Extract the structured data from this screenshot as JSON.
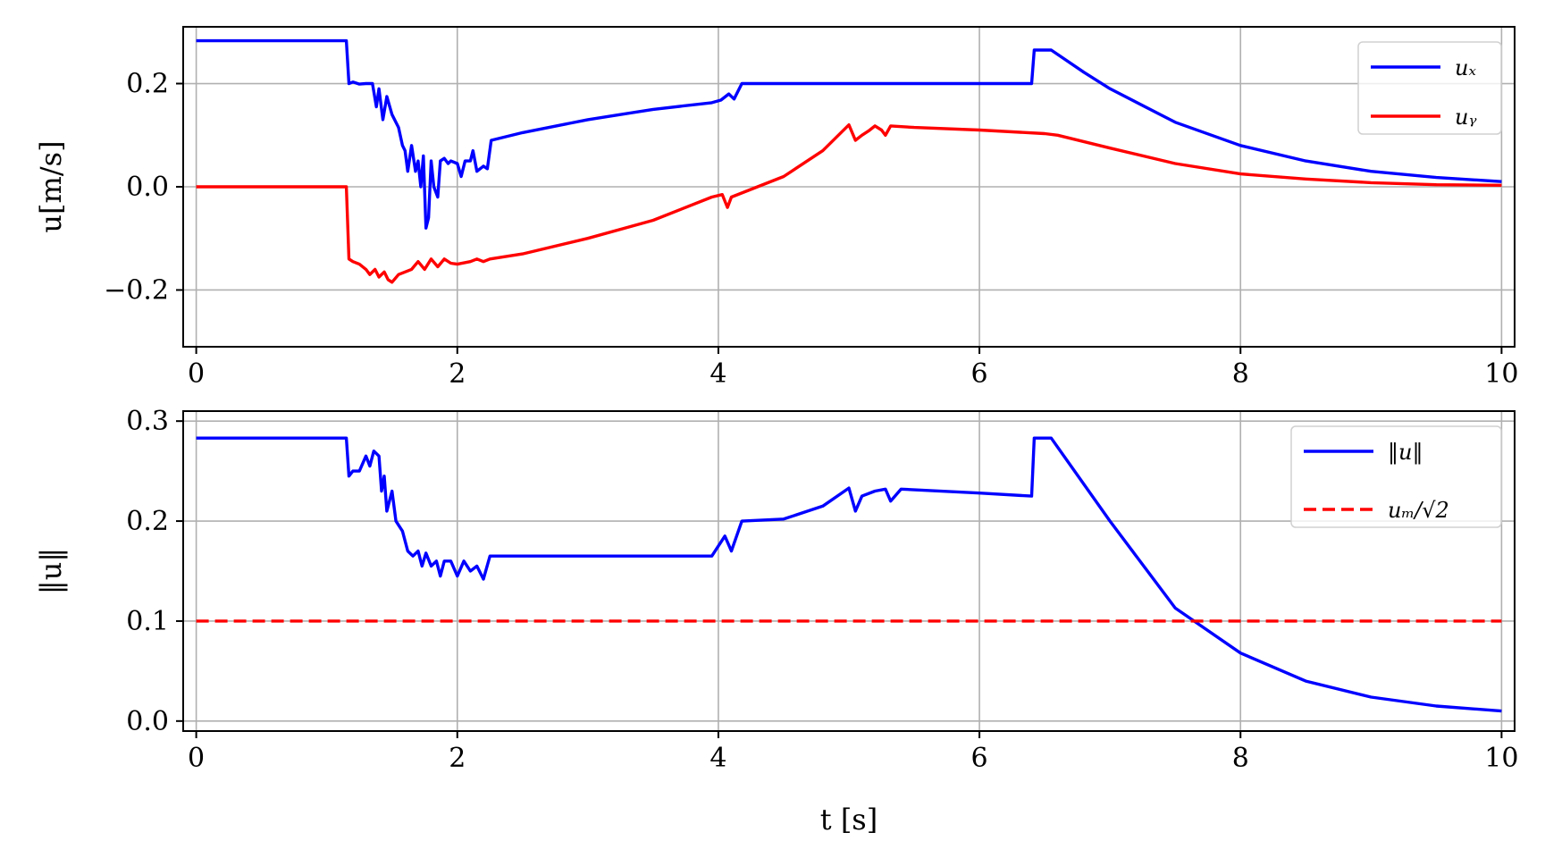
{
  "chart_data": [
    {
      "type": "line",
      "ylabel": "u[m/s]",
      "xlim": [
        -0.1,
        10.1
      ],
      "ylim": [
        -0.31,
        0.31
      ],
      "xticks": [
        0,
        2,
        4,
        6,
        8,
        10
      ],
      "yticks": [
        -0.2,
        0.0,
        0.2
      ],
      "xtick_labels": [
        "0",
        "2",
        "4",
        "6",
        "8",
        "10"
      ],
      "ytick_labels": [
        "−0.2",
        "0.0",
        "0.2"
      ],
      "grid": true,
      "legend_position": "top-right",
      "series": [
        {
          "name": "u_x",
          "legend_label": "uₓ",
          "color": "#0000ff",
          "style": "solid",
          "points": [
            [
              0,
              0.283
            ],
            [
              1.15,
              0.283
            ],
            [
              1.17,
              0.2
            ],
            [
              1.2,
              0.203
            ],
            [
              1.25,
              0.199
            ],
            [
              1.3,
              0.2
            ],
            [
              1.35,
              0.2
            ],
            [
              1.38,
              0.155
            ],
            [
              1.4,
              0.19
            ],
            [
              1.43,
              0.13
            ],
            [
              1.46,
              0.175
            ],
            [
              1.5,
              0.14
            ],
            [
              1.55,
              0.115
            ],
            [
              1.58,
              0.08
            ],
            [
              1.6,
              0.07
            ],
            [
              1.62,
              0.03
            ],
            [
              1.65,
              0.08
            ],
            [
              1.68,
              0.03
            ],
            [
              1.7,
              0.05
            ],
            [
              1.72,
              0.0
            ],
            [
              1.74,
              0.06
            ],
            [
              1.76,
              -0.08
            ],
            [
              1.78,
              -0.06
            ],
            [
              1.8,
              0.05
            ],
            [
              1.82,
              0.0
            ],
            [
              1.85,
              -0.02
            ],
            [
              1.87,
              0.05
            ],
            [
              1.9,
              0.055
            ],
            [
              1.93,
              0.045
            ],
            [
              1.95,
              0.05
            ],
            [
              2.0,
              0.045
            ],
            [
              2.03,
              0.02
            ],
            [
              2.06,
              0.05
            ],
            [
              2.1,
              0.05
            ],
            [
              2.12,
              0.07
            ],
            [
              2.15,
              0.03
            ],
            [
              2.2,
              0.04
            ],
            [
              2.23,
              0.035
            ],
            [
              2.26,
              0.09
            ],
            [
              2.5,
              0.105
            ],
            [
              3.0,
              0.13
            ],
            [
              3.5,
              0.15
            ],
            [
              3.95,
              0.163
            ],
            [
              4.02,
              0.168
            ],
            [
              4.08,
              0.18
            ],
            [
              4.12,
              0.17
            ],
            [
              4.18,
              0.2
            ],
            [
              6.38,
              0.2
            ],
            [
              6.4,
              0.2
            ],
            [
              6.42,
              0.265
            ],
            [
              6.55,
              0.265
            ],
            [
              6.8,
              0.222
            ],
            [
              7.0,
              0.19
            ],
            [
              7.5,
              0.125
            ],
            [
              8.0,
              0.08
            ],
            [
              8.5,
              0.05
            ],
            [
              9.0,
              0.03
            ],
            [
              9.5,
              0.018
            ],
            [
              10.0,
              0.01
            ]
          ]
        },
        {
          "name": "u_y",
          "legend_label": "uᵧ",
          "color": "#ff0000",
          "style": "solid",
          "points": [
            [
              0,
              0.0
            ],
            [
              1.15,
              0.0
            ],
            [
              1.17,
              -0.14
            ],
            [
              1.2,
              -0.145
            ],
            [
              1.25,
              -0.15
            ],
            [
              1.3,
              -0.16
            ],
            [
              1.33,
              -0.17
            ],
            [
              1.37,
              -0.16
            ],
            [
              1.4,
              -0.175
            ],
            [
              1.44,
              -0.165
            ],
            [
              1.47,
              -0.18
            ],
            [
              1.5,
              -0.185
            ],
            [
              1.55,
              -0.17
            ],
            [
              1.6,
              -0.165
            ],
            [
              1.65,
              -0.16
            ],
            [
              1.7,
              -0.145
            ],
            [
              1.75,
              -0.16
            ],
            [
              1.8,
              -0.14
            ],
            [
              1.85,
              -0.155
            ],
            [
              1.9,
              -0.14
            ],
            [
              1.95,
              -0.148
            ],
            [
              2.0,
              -0.15
            ],
            [
              2.1,
              -0.145
            ],
            [
              2.15,
              -0.14
            ],
            [
              2.2,
              -0.145
            ],
            [
              2.25,
              -0.14
            ],
            [
              2.5,
              -0.13
            ],
            [
              3.0,
              -0.1
            ],
            [
              3.5,
              -0.065
            ],
            [
              3.95,
              -0.02
            ],
            [
              4.03,
              -0.015
            ],
            [
              4.07,
              -0.04
            ],
            [
              4.1,
              -0.02
            ],
            [
              4.5,
              0.02
            ],
            [
              4.8,
              0.07
            ],
            [
              5.0,
              0.12
            ],
            [
              5.05,
              0.09
            ],
            [
              5.1,
              0.1
            ],
            [
              5.15,
              0.108
            ],
            [
              5.2,
              0.118
            ],
            [
              5.25,
              0.11
            ],
            [
              5.28,
              0.1
            ],
            [
              5.32,
              0.118
            ],
            [
              5.5,
              0.115
            ],
            [
              6.0,
              0.11
            ],
            [
              6.5,
              0.103
            ],
            [
              6.6,
              0.1
            ],
            [
              7.0,
              0.075
            ],
            [
              7.5,
              0.045
            ],
            [
              8.0,
              0.025
            ],
            [
              8.5,
              0.015
            ],
            [
              9.0,
              0.008
            ],
            [
              9.5,
              0.004
            ],
            [
              10.0,
              0.003
            ]
          ]
        }
      ]
    },
    {
      "type": "line",
      "ylabel": "‖u‖",
      "xlabel": "t [s]",
      "xlim": [
        -0.1,
        10.1
      ],
      "ylim": [
        -0.01,
        0.31
      ],
      "xticks": [
        0,
        2,
        4,
        6,
        8,
        10
      ],
      "yticks": [
        0.0,
        0.1,
        0.2,
        0.3
      ],
      "xtick_labels": [
        "0",
        "2",
        "4",
        "6",
        "8",
        "10"
      ],
      "ytick_labels": [
        "0.0",
        "0.1",
        "0.2",
        "0.3"
      ],
      "grid": true,
      "legend_position": "top-right",
      "series": [
        {
          "name": "||u||",
          "legend_label": "‖u‖",
          "color": "#0000ff",
          "style": "solid",
          "points": [
            [
              0,
              0.283
            ],
            [
              1.15,
              0.283
            ],
            [
              1.17,
              0.245
            ],
            [
              1.2,
              0.25
            ],
            [
              1.25,
              0.25
            ],
            [
              1.3,
              0.265
            ],
            [
              1.33,
              0.255
            ],
            [
              1.36,
              0.27
            ],
            [
              1.4,
              0.265
            ],
            [
              1.42,
              0.23
            ],
            [
              1.44,
              0.245
            ],
            [
              1.46,
              0.21
            ],
            [
              1.5,
              0.23
            ],
            [
              1.53,
              0.2
            ],
            [
              1.58,
              0.19
            ],
            [
              1.62,
              0.17
            ],
            [
              1.66,
              0.165
            ],
            [
              1.7,
              0.17
            ],
            [
              1.73,
              0.155
            ],
            [
              1.76,
              0.168
            ],
            [
              1.8,
              0.155
            ],
            [
              1.84,
              0.16
            ],
            [
              1.87,
              0.145
            ],
            [
              1.9,
              0.16
            ],
            [
              1.95,
              0.16
            ],
            [
              2.0,
              0.145
            ],
            [
              2.05,
              0.16
            ],
            [
              2.1,
              0.15
            ],
            [
              2.15,
              0.155
            ],
            [
              2.2,
              0.142
            ],
            [
              2.25,
              0.165
            ],
            [
              3.0,
              0.165
            ],
            [
              3.95,
              0.165
            ],
            [
              4.05,
              0.185
            ],
            [
              4.1,
              0.17
            ],
            [
              4.18,
              0.2
            ],
            [
              4.5,
              0.202
            ],
            [
              4.8,
              0.215
            ],
            [
              5.0,
              0.233
            ],
            [
              5.05,
              0.21
            ],
            [
              5.1,
              0.225
            ],
            [
              5.2,
              0.23
            ],
            [
              5.28,
              0.232
            ],
            [
              5.32,
              0.22
            ],
            [
              5.4,
              0.232
            ],
            [
              6.0,
              0.228
            ],
            [
              6.4,
              0.225
            ],
            [
              6.42,
              0.283
            ],
            [
              6.55,
              0.283
            ],
            [
              7.0,
              0.2
            ],
            [
              7.5,
              0.113
            ],
            [
              8.0,
              0.068
            ],
            [
              8.5,
              0.04
            ],
            [
              9.0,
              0.024
            ],
            [
              9.5,
              0.015
            ],
            [
              10.0,
              0.01
            ]
          ]
        },
        {
          "name": "u_m/sqrt(2)",
          "legend_label": "uₘ/√2",
          "color": "#ff0000",
          "style": "dashed",
          "points": [
            [
              0,
              0.1
            ],
            [
              10,
              0.1
            ]
          ]
        }
      ]
    }
  ]
}
